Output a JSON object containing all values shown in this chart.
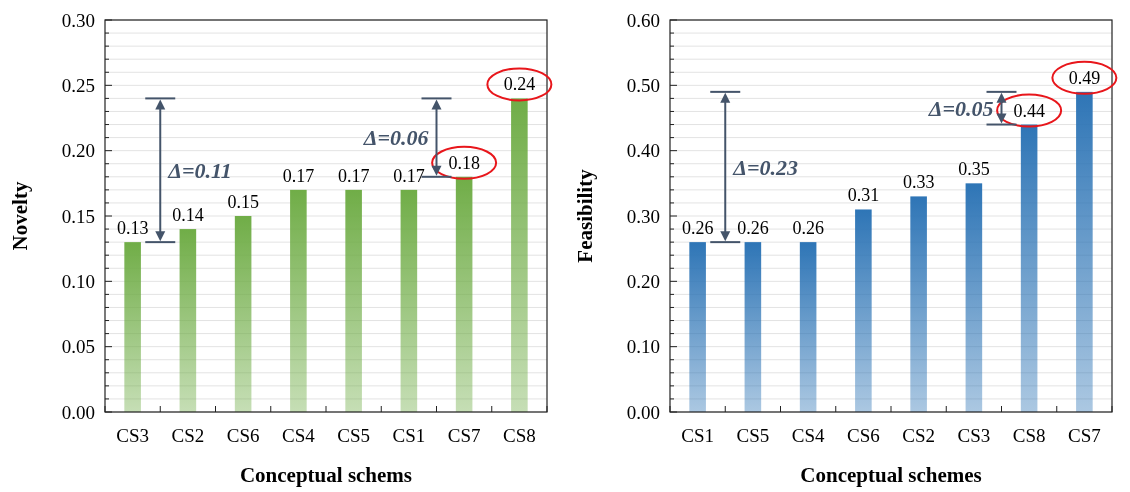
{
  "chart_data": [
    {
      "type": "bar",
      "xlabel": "Conceptual schems",
      "ylabel": "Novelty",
      "categories": [
        "CS3",
        "CS2",
        "CS6",
        "CS4",
        "CS5",
        "CS1",
        "CS7",
        "CS8"
      ],
      "values": [
        0.13,
        0.14,
        0.15,
        0.17,
        0.17,
        0.17,
        0.18,
        0.24
      ],
      "color": "#70ad47",
      "ylim": [
        0,
        0.3
      ],
      "yticks": [
        {
          "value": 0,
          "label": "0.00"
        },
        {
          "value": 0.05,
          "label": "0.05"
        },
        {
          "value": 0.1,
          "label": "0.10"
        },
        {
          "value": 0.15,
          "label": "0.15"
        },
        {
          "value": 0.2,
          "label": "0.20"
        },
        {
          "value": 0.25,
          "label": "0.25"
        },
        {
          "value": 0.3,
          "label": "0.30"
        }
      ],
      "grid": "y",
      "data_labels": true,
      "annotations": [
        "Δ=0.11",
        "Δ=0.06"
      ]
    },
    {
      "type": "bar",
      "xlabel": "Conceptual schemes",
      "ylabel": "Feasibility",
      "categories": [
        "CS1",
        "CS5",
        "CS4",
        "CS6",
        "CS2",
        "CS3",
        "CS8",
        "CS7"
      ],
      "values": [
        0.26,
        0.26,
        0.26,
        0.31,
        0.33,
        0.35,
        0.44,
        0.49
      ],
      "color": "#2e75b6",
      "ylim": [
        0,
        0.6
      ],
      "yticks": [
        {
          "value": 0,
          "label": "0.00"
        },
        {
          "value": 0.1,
          "label": "0.10"
        },
        {
          "value": 0.2,
          "label": "0.20"
        },
        {
          "value": 0.3,
          "label": "0.30"
        },
        {
          "value": 0.4,
          "label": "0.40"
        },
        {
          "value": 0.5,
          "label": "0.50"
        },
        {
          "value": 0.6,
          "label": "0.60"
        }
      ],
      "grid": "y",
      "data_labels": true,
      "annotations": [
        "Δ=0.23",
        "Δ=0.05"
      ]
    }
  ]
}
